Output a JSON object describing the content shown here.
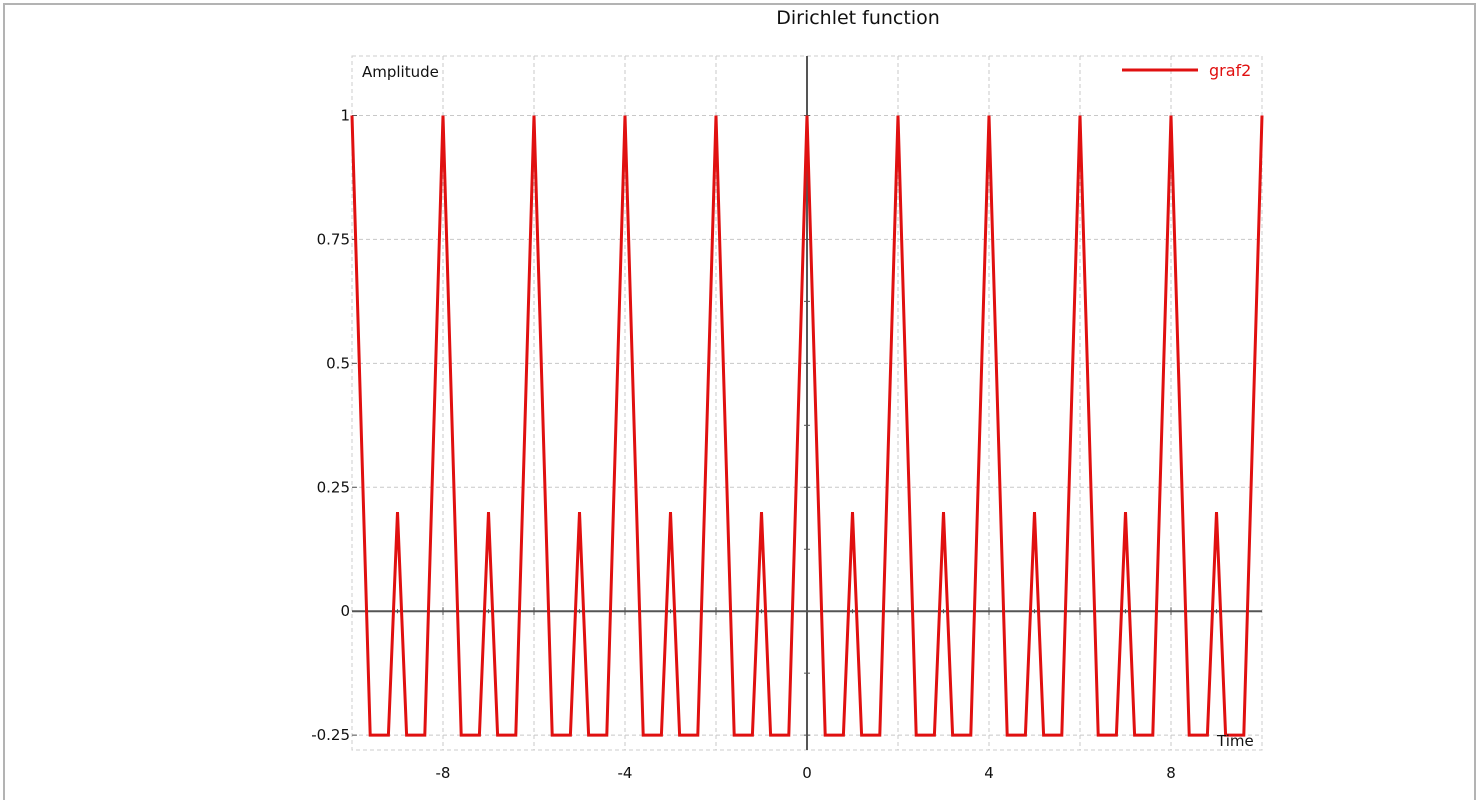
{
  "chart_data": {
    "type": "line",
    "title": "Dirichlet function",
    "xlabel": "Time",
    "ylabel": "Amplitude",
    "xlim": [
      -10,
      10
    ],
    "ylim": [
      -0.28,
      1.12
    ],
    "xticks": [
      -8,
      -4,
      0,
      4,
      8
    ],
    "xtick_labels": [
      "-8",
      "-4",
      "0",
      "4",
      "8"
    ],
    "yticks": [
      -0.25,
      0,
      0.25,
      0.5,
      0.75,
      1
    ],
    "ytick_labels": [
      "-0.25",
      "0",
      "0.25",
      "0.5",
      "0.75",
      "1"
    ],
    "grid": true,
    "legend_position": "top-right",
    "series": [
      {
        "name": "graf2",
        "color": "#e01010",
        "x": [
          -10,
          -9.6,
          -9.2,
          -9,
          -8.8,
          -8.4,
          -8,
          -7.6,
          -7.2,
          -7,
          -6.8,
          -6.4,
          -6,
          -5.6,
          -5.2,
          -5,
          -4.8,
          -4.4,
          -4,
          -3.6,
          -3.2,
          -3,
          -2.8,
          -2.4,
          -2,
          -1.6,
          -1.2,
          -1,
          -0.8,
          -0.4,
          0,
          0.4,
          0.8,
          1,
          1.2,
          1.6,
          2,
          2.4,
          2.8,
          3,
          3.2,
          3.6,
          4,
          4.4,
          4.8,
          5,
          5.2,
          5.6,
          6,
          6.4,
          6.8,
          7,
          7.2,
          7.6,
          8,
          8.4,
          8.8,
          9,
          9.2,
          9.6,
          10
        ],
        "y": [
          1,
          -0.25,
          -0.25,
          0.2,
          -0.25,
          -0.25,
          1,
          -0.25,
          -0.25,
          0.2,
          -0.25,
          -0.25,
          1,
          -0.25,
          -0.25,
          0.2,
          -0.25,
          -0.25,
          1,
          -0.25,
          -0.25,
          0.2,
          -0.25,
          -0.25,
          1,
          -0.25,
          -0.25,
          0.2,
          -0.25,
          -0.25,
          1,
          -0.25,
          -0.25,
          0.2,
          -0.25,
          -0.25,
          1,
          -0.25,
          -0.25,
          0.2,
          -0.25,
          -0.25,
          1,
          -0.25,
          -0.25,
          0.2,
          -0.25,
          -0.25,
          1,
          -0.25,
          -0.25,
          0.2,
          -0.25,
          -0.25,
          1,
          -0.25,
          -0.25,
          0.2,
          -0.25,
          -0.25,
          1
        ]
      }
    ]
  }
}
